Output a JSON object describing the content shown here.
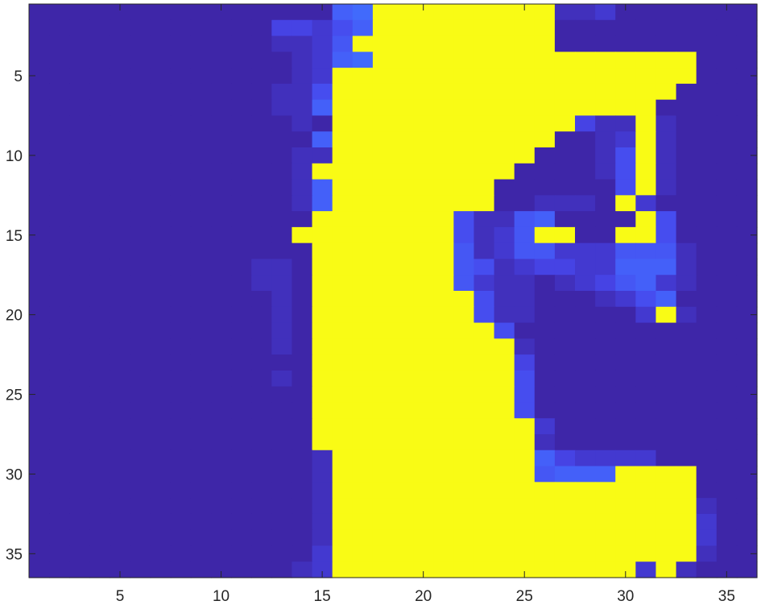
{
  "chart_data": {
    "type": "heatmap",
    "title": "",
    "xlabel": "",
    "ylabel": "",
    "xlim": [
      0.5,
      36.5
    ],
    "ylim": [
      0.5,
      36.5
    ],
    "y_direction": "reverse",
    "grid": false,
    "legend": "none",
    "colorbar": false,
    "colormap": "parula",
    "color_range": [
      0,
      1
    ],
    "x_ticks": [
      5,
      10,
      15,
      20,
      25,
      30,
      35
    ],
    "y_ticks": [
      5,
      10,
      15,
      20,
      25,
      30,
      35
    ],
    "x_tick_labels": [
      "5",
      "10",
      "15",
      "20",
      "25",
      "30",
      "35"
    ],
    "y_tick_labels": [
      "5",
      "10",
      "15",
      "20",
      "25",
      "30",
      "35"
    ],
    "colormap_stops": [
      "#3e26a8",
      "#4746eb",
      "#4367fd",
      "#2e87f7",
      "#1ca6de",
      "#06b7c0",
      "#40c29a",
      "#85c46b",
      "#c5be43",
      "#f7be3b",
      "#f9fb15"
    ],
    "rows": [
      "AAAAAAAAAAAAAAAGHZZZZZZZZZBBCAAAAAAA",
      "AAAAAAAAAAAADDCEGZZZZZZZZZAAAAAAAAAA",
      "AAAAAAAAAAAABBCFZZZZZZZZZZAAAAAAAAAA",
      "AAAAAAAAAAAAABCGHZZZZZZZZZZZZZZZZAAA",
      "AAAAAAAAAAAAABCZZZZZZZZZZZZZZZZZZAAA",
      "AAAAAAAAAAAABBEZZZZZZZZZZZZZZZZZAAAA",
      "AAAAAAAAAAAABBGZZZZZZZZZZZZZZZZAAAAA",
      "AAAAAAAAAAAAABAZZZZZZZZZZZZDBBZBAAAA",
      "AAAAAAAAAAAAAAGZZZZZZZZZZZAABCZBAAAA",
      "AAAAAAAAAAAAABBZZZZZZZZZZAAABEZBAAAA",
      "AAAAAAAAAAAAABZZZZZZZZZZAAAABEZBAAAA",
      "AAAAAAAAAAAAABGZZZZZZZZAAAAAAEZBAAAA",
      "AAAAAAAAAAAAABGZZZZZZZZAABBBAZCAAAAA",
      "AAAAAAAAAAAAAAZZZZZZZEBBFGAAAAZEAAAA",
      "AAAAAAAAAAAAAZZZZZZZZEBCFZZAAZZEAAAA",
      "AAAAAAAAAAAAAAZZZZZZZFBCFFCCCFFFBAAA",
      "AAAAAAAAAAABBAZZZZZZZFEBCDDCCGGGBAAA",
      "AAAAAAAAAAABBAZZZZZZZFCBBABCDFGCBAAA",
      "AAAAAAAAAAAABAZZZZZZZZEBBAAABCEGAAAA",
      "AAAAAAAAAAAABAZZZZZZZZEBBAAAAACZBAAA",
      "AAAAAAAAAAAABAZZZZZZZZZEAAAAAAAAAAAA",
      "AAAAAAAAAAAABAZZZZZZZZZZBAAAAAAAAAAA",
      "AAAAAAAAAAAAAAZZZZZZZZZZDAAAAAAAAAAA",
      "AAAAAAAAAAAABAZZZZZZZZZZEAAAAAAAAAAA",
      "AAAAAAAAAAAAAAZZZZZZZZZZEAAAAAAAAAAA",
      "AAAAAAAAAAAAAAZZZZZZZZZZEAAAAAAAAAAA",
      "AAAAAAAAAAAAAAZZZZZZZZZZZCAAAAAAAAAA",
      "AAAAAAAAAAAAAAZZZZZZZZZZZBAAAAAAAAAA",
      "AAAAAAAAAAAAAABZZZZZZZZZZGDCCCCAAAAA",
      "AAAAAAAAAAAAAABZZZZZZZZZZFGGGZZZZAAA",
      "AAAAAAAAAAAAAABZZZZZZZZZZZZZZZZZZAAA",
      "AAAAAAAAAAAAAABZZZZZZZZZZZZZZZZZZBAA",
      "AAAAAAAAAAAAAABZZZZZZZZZZZZZZZZZZCAA",
      "AAAAAAAAAAAAAABZZZZZZZZZZZZZZZZZZCAA",
      "AAAAAAAAAAAAAACZZZZZZZZZZZZZZZZZZBAA",
      "AAAAAAAAAAAAABCZZZZZZZZZZZZZZZCZBAAA"
    ],
    "level_key": {
      "A": 0.0,
      "B": 0.03,
      "C": 0.06,
      "D": 0.09,
      "E": 0.12,
      "F": 0.15,
      "G": 0.18,
      "H": 0.21,
      "Z": 1.0
    }
  }
}
